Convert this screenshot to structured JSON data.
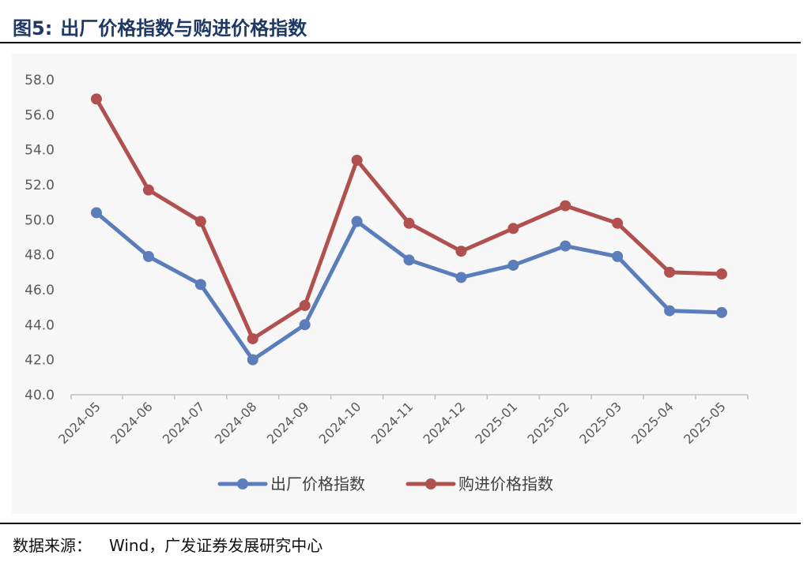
{
  "figure": {
    "number": "图5:",
    "title": "出厂价格指数与购进价格指数"
  },
  "source": {
    "label": "数据来源：",
    "text": "Wind，广发证券发展研究中心"
  },
  "chart_data": {
    "type": "line",
    "categories": [
      "2024-05",
      "2024-06",
      "2024-07",
      "2024-08",
      "2024-09",
      "2024-10",
      "2024-11",
      "2024-12",
      "2025-01",
      "2025-02",
      "2025-03",
      "2025-04",
      "2025-05"
    ],
    "ylim": [
      40.0,
      58.0
    ],
    "yticks": [
      "40.0",
      "42.0",
      "44.0",
      "46.0",
      "48.0",
      "50.0",
      "52.0",
      "54.0",
      "56.0",
      "58.0"
    ],
    "grid": false,
    "legend_position": "bottom",
    "series": [
      {
        "name": "出厂价格指数",
        "color": "#5b7dbb",
        "values": [
          50.4,
          47.9,
          46.3,
          42.0,
          44.0,
          49.9,
          47.7,
          46.7,
          47.4,
          48.5,
          47.9,
          44.8,
          44.7
        ]
      },
      {
        "name": "购进价格指数",
        "color": "#b0504f",
        "values": [
          56.9,
          51.7,
          49.9,
          43.2,
          45.1,
          53.4,
          49.8,
          48.2,
          49.5,
          50.8,
          49.8,
          47.0,
          46.9
        ]
      }
    ]
  }
}
